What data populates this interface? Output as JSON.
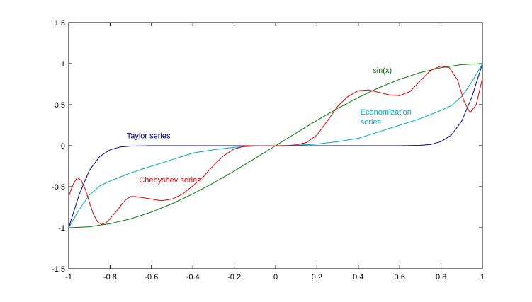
{
  "chart_data": {
    "type": "line",
    "xlim": [
      -1,
      1
    ],
    "ylim": [
      -1.5,
      1.5
    ],
    "grid": false,
    "x_ticks": [
      -1,
      -0.8,
      -0.6,
      -0.4,
      -0.2,
      0,
      0.2,
      0.4,
      0.6,
      0.8,
      1
    ],
    "x_tick_labels": [
      "-1",
      "-0.8",
      "-0.6",
      "-0.4",
      "-0.2",
      "0",
      "0.2",
      "0.4",
      "0.6",
      "0.8",
      "1"
    ],
    "y_ticks": [
      -1.5,
      -1,
      -0.5,
      0,
      0.5,
      1,
      1.5
    ],
    "y_tick_labels": [
      "-1.5",
      "-1",
      "-0.5",
      "0",
      "0.5",
      "1",
      "1.5"
    ],
    "annotations": [
      {
        "text": "sin(x)",
        "x": 0.47,
        "y": 0.89,
        "color": "#007a00"
      },
      {
        "text": "Taylor series",
        "x": -0.72,
        "y": 0.09,
        "color": "#00008b"
      },
      {
        "text": "Economization",
        "x": 0.41,
        "y": 0.38,
        "color": "#00a8b8"
      },
      {
        "text": "series",
        "x": 0.41,
        "y": 0.26,
        "color": "#00a8b8"
      },
      {
        "text": "Chebyshev series",
        "x": -0.66,
        "y": -0.45,
        "color": "#d40000"
      }
    ],
    "series": [
      {
        "color": "#007a00",
        "x": [
          -1,
          -0.9,
          -0.8,
          -0.7,
          -0.6,
          -0.5,
          -0.4,
          -0.3,
          -0.2,
          -0.1,
          0,
          0.1,
          0.2,
          0.3,
          0.4,
          0.5,
          0.6,
          0.7,
          0.8,
          0.9,
          1
        ],
        "y": [
          -1,
          -0.988,
          -0.951,
          -0.891,
          -0.809,
          -0.707,
          -0.588,
          -0.454,
          -0.309,
          -0.156,
          0,
          0.156,
          0.309,
          0.454,
          0.588,
          0.707,
          0.809,
          0.891,
          0.951,
          0.988,
          1
        ]
      },
      {
        "color": "#00008b",
        "x": [
          -1,
          -0.95,
          -0.9,
          -0.85,
          -0.8,
          -0.75,
          -0.7,
          -0.6,
          -0.5,
          -0.4,
          -0.3,
          -0.2,
          -0.1,
          0,
          0.1,
          0.2,
          0.3,
          0.4,
          0.5,
          0.6,
          0.7,
          0.75,
          0.8,
          0.85,
          0.9,
          0.95,
          1
        ],
        "y": [
          -1,
          -0.6,
          -0.3,
          -0.13,
          -0.05,
          -0.015,
          -0.004,
          0,
          0,
          0,
          0,
          0,
          0,
          0,
          0,
          0,
          0,
          0,
          0,
          0,
          0.004,
          0.015,
          0.05,
          0.13,
          0.3,
          0.6,
          1
        ]
      },
      {
        "color": "#00a8b8",
        "x": [
          -1,
          -0.95,
          -0.9,
          -0.85,
          -0.8,
          -0.75,
          -0.7,
          -0.65,
          -0.6,
          -0.5,
          -0.4,
          -0.3,
          -0.2,
          -0.1,
          0,
          0.1,
          0.2,
          0.3,
          0.4,
          0.5,
          0.6,
          0.65,
          0.7,
          0.75,
          0.8,
          0.85,
          0.9,
          0.95,
          1
        ],
        "y": [
          -1,
          -0.78,
          -0.6,
          -0.49,
          -0.43,
          -0.38,
          -0.33,
          -0.29,
          -0.25,
          -0.17,
          -0.09,
          -0.05,
          -0.02,
          -0.005,
          0,
          0.005,
          0.02,
          0.05,
          0.09,
          0.17,
          0.25,
          0.29,
          0.33,
          0.38,
          0.43,
          0.49,
          0.6,
          0.78,
          1
        ]
      },
      {
        "color": "#d40000",
        "x": [
          -1,
          -0.98,
          -0.96,
          -0.94,
          -0.92,
          -0.9,
          -0.88,
          -0.86,
          -0.84,
          -0.82,
          -0.8,
          -0.78,
          -0.76,
          -0.74,
          -0.72,
          -0.7,
          -0.68,
          -0.6,
          -0.58,
          -0.55,
          -0.5,
          -0.45,
          -0.4,
          -0.35,
          -0.3,
          -0.25,
          -0.2,
          -0.15,
          -0.1,
          -0.05,
          0,
          0.05,
          0.1,
          0.15,
          0.2,
          0.25,
          0.3,
          0.35,
          0.4,
          0.45,
          0.5,
          0.55,
          0.6,
          0.65,
          0.7,
          0.75,
          0.8,
          0.84,
          0.88,
          0.91,
          0.94,
          0.97,
          1
        ],
        "y": [
          -0.62,
          -0.48,
          -0.39,
          -0.42,
          -0.53,
          -0.69,
          -0.84,
          -0.93,
          -0.96,
          -0.94,
          -0.89,
          -0.83,
          -0.77,
          -0.7,
          -0.65,
          -0.62,
          -0.62,
          -0.65,
          -0.66,
          -0.67,
          -0.65,
          -0.59,
          -0.49,
          -0.38,
          -0.24,
          -0.12,
          -0.04,
          -0.005,
          0,
          0,
          0,
          0,
          0.01,
          0.04,
          0.13,
          0.3,
          0.48,
          0.6,
          0.67,
          0.68,
          0.65,
          0.62,
          0.61,
          0.66,
          0.79,
          0.92,
          0.97,
          0.95,
          0.8,
          0.55,
          0.4,
          0.5,
          0.82
        ]
      }
    ]
  }
}
